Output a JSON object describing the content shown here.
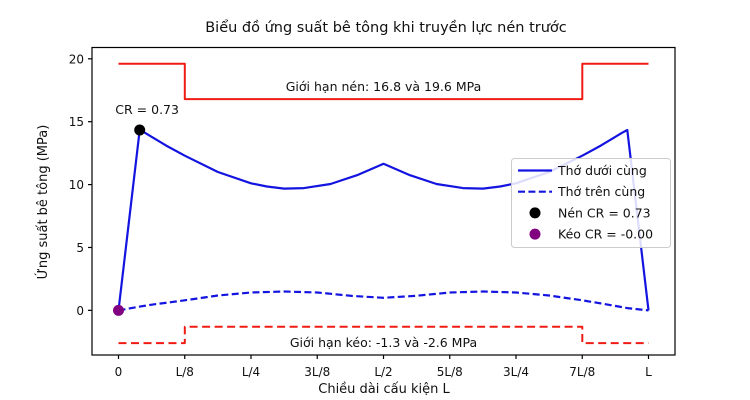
{
  "chart_data": {
    "type": "line",
    "title": "Biểu đồ ứng suất bê tông khi truyền lực nén trước",
    "xlabel": "Chiều dài cấu kiện L",
    "ylabel": "Ứng suất bê tông (MPa)",
    "xlim": [
      -0.05,
      1.05
    ],
    "ylim": [
      -3.55,
      20.9
    ],
    "grid": false,
    "colors": {
      "curve_blue": "#1414e0",
      "limit_red": "#f01c14",
      "compression_marker": "#000000",
      "tension_marker": "#800080",
      "spine": "#000000",
      "legend_border": "#cccccc"
    },
    "x_ticks": [
      {
        "v": 0.0,
        "label": "0"
      },
      {
        "v": 0.125,
        "label": "L/8"
      },
      {
        "v": 0.25,
        "label": "L/4"
      },
      {
        "v": 0.375,
        "label": "3L/8"
      },
      {
        "v": 0.5,
        "label": "L/2"
      },
      {
        "v": 0.625,
        "label": "5L/8"
      },
      {
        "v": 0.75,
        "label": "3L/4"
      },
      {
        "v": 0.875,
        "label": "7L/8"
      },
      {
        "v": 1.0,
        "label": "L"
      }
    ],
    "y_ticks": [
      {
        "v": 0,
        "label": "0"
      },
      {
        "v": 5,
        "label": "5"
      },
      {
        "v": 10,
        "label": "10"
      },
      {
        "v": 15,
        "label": "15"
      },
      {
        "v": 20,
        "label": "20"
      }
    ],
    "series": [
      {
        "id": "compression-limit-line",
        "name": "Giới hạn nén",
        "color": "#f01c14",
        "style": "solid",
        "width": 2,
        "points": [
          [
            0,
            19.6
          ],
          [
            0.125,
            19.6
          ],
          [
            0.125,
            16.8
          ],
          [
            0.875,
            16.8
          ],
          [
            0.875,
            19.6
          ],
          [
            1,
            19.6
          ]
        ]
      },
      {
        "id": "tension-limit-line",
        "name": "Giới hạn kéo",
        "color": "#f01c14",
        "style": "dashed",
        "width": 2,
        "points": [
          [
            0,
            -2.6
          ],
          [
            0.125,
            -2.6
          ],
          [
            0.125,
            -1.3
          ],
          [
            0.875,
            -1.3
          ],
          [
            0.875,
            -2.6
          ],
          [
            1,
            -2.6
          ]
        ]
      },
      {
        "id": "bottom-fiber-curve",
        "name": "Thớ dưới cùng",
        "color": "#1414e0",
        "style": "solid",
        "width": 2.2,
        "points": [
          [
            0,
            0
          ],
          [
            0.04,
            14.34
          ],
          [
            0.05,
            14.12
          ],
          [
            0.0625,
            13.8
          ],
          [
            0.09,
            13.1
          ],
          [
            0.125,
            12.3
          ],
          [
            0.1875,
            11.0
          ],
          [
            0.25,
            10.1
          ],
          [
            0.28,
            9.85
          ],
          [
            0.3125,
            9.68
          ],
          [
            0.35,
            9.72
          ],
          [
            0.4,
            10.05
          ],
          [
            0.45,
            10.75
          ],
          [
            0.5,
            11.65
          ],
          [
            0.55,
            10.75
          ],
          [
            0.6,
            10.05
          ],
          [
            0.65,
            9.72
          ],
          [
            0.6875,
            9.68
          ],
          [
            0.72,
            9.85
          ],
          [
            0.75,
            10.1
          ],
          [
            0.8125,
            11.0
          ],
          [
            0.875,
            12.3
          ],
          [
            0.91,
            13.1
          ],
          [
            0.9375,
            13.8
          ],
          [
            0.95,
            14.12
          ],
          [
            0.96,
            14.34
          ],
          [
            1,
            0
          ]
        ]
      },
      {
        "id": "top-fiber-curve",
        "name": "Thớ trên cùng",
        "color": "#1414e0",
        "style": "dashed",
        "width": 2.2,
        "points": [
          [
            0,
            0
          ],
          [
            0.04,
            0.3
          ],
          [
            0.0625,
            0.45
          ],
          [
            0.125,
            0.8
          ],
          [
            0.1875,
            1.18
          ],
          [
            0.25,
            1.42
          ],
          [
            0.3125,
            1.5
          ],
          [
            0.375,
            1.42
          ],
          [
            0.44,
            1.15
          ],
          [
            0.5,
            1.0
          ],
          [
            0.56,
            1.15
          ],
          [
            0.625,
            1.42
          ],
          [
            0.6875,
            1.5
          ],
          [
            0.75,
            1.42
          ],
          [
            0.8125,
            1.18
          ],
          [
            0.875,
            0.8
          ],
          [
            0.92,
            0.48
          ],
          [
            0.96,
            0.18
          ],
          [
            1,
            0
          ]
        ]
      }
    ],
    "markers": [
      {
        "id": "compression-cr-marker",
        "label": "Nén CR = 0.73",
        "x": 0.04,
        "y": 14.34,
        "color": "#000000",
        "r": 5.5
      },
      {
        "id": "tension-cr-marker",
        "label": "Kéo CR = -0.00",
        "x": 0.0,
        "y": 0.0,
        "color": "#800080",
        "r": 5.5
      }
    ],
    "annotations": [
      {
        "id": "cr-value-annotation",
        "text": "CR = 0.73",
        "x": -0.006,
        "y": 15.6,
        "color": "#111111",
        "anchor": "start"
      },
      {
        "id": "compression-limit-label",
        "text": "Giới hạn nén: 16.8 và 19.6 MPa",
        "x": 0.5,
        "y": 17.45,
        "color": "#f01c14",
        "anchor": "middle"
      },
      {
        "id": "tension-limit-label",
        "text": "Giới hạn kéo: -1.3 và -2.6 MPa",
        "x": 0.5,
        "y": -2.9,
        "color": "#f01c14",
        "anchor": "middle"
      }
    ],
    "legend": {
      "position": "center right",
      "items": [
        {
          "label": "Thớ dưới cùng",
          "swatch": "line",
          "color": "#1414e0",
          "dashed": false
        },
        {
          "label": "Thớ trên cùng",
          "swatch": "line",
          "color": "#1414e0",
          "dashed": true
        },
        {
          "label": "Nén CR = 0.73",
          "swatch": "dot",
          "color": "#000000"
        },
        {
          "label": "Kéo CR = -0.00",
          "swatch": "dot",
          "color": "#800080"
        }
      ]
    }
  }
}
